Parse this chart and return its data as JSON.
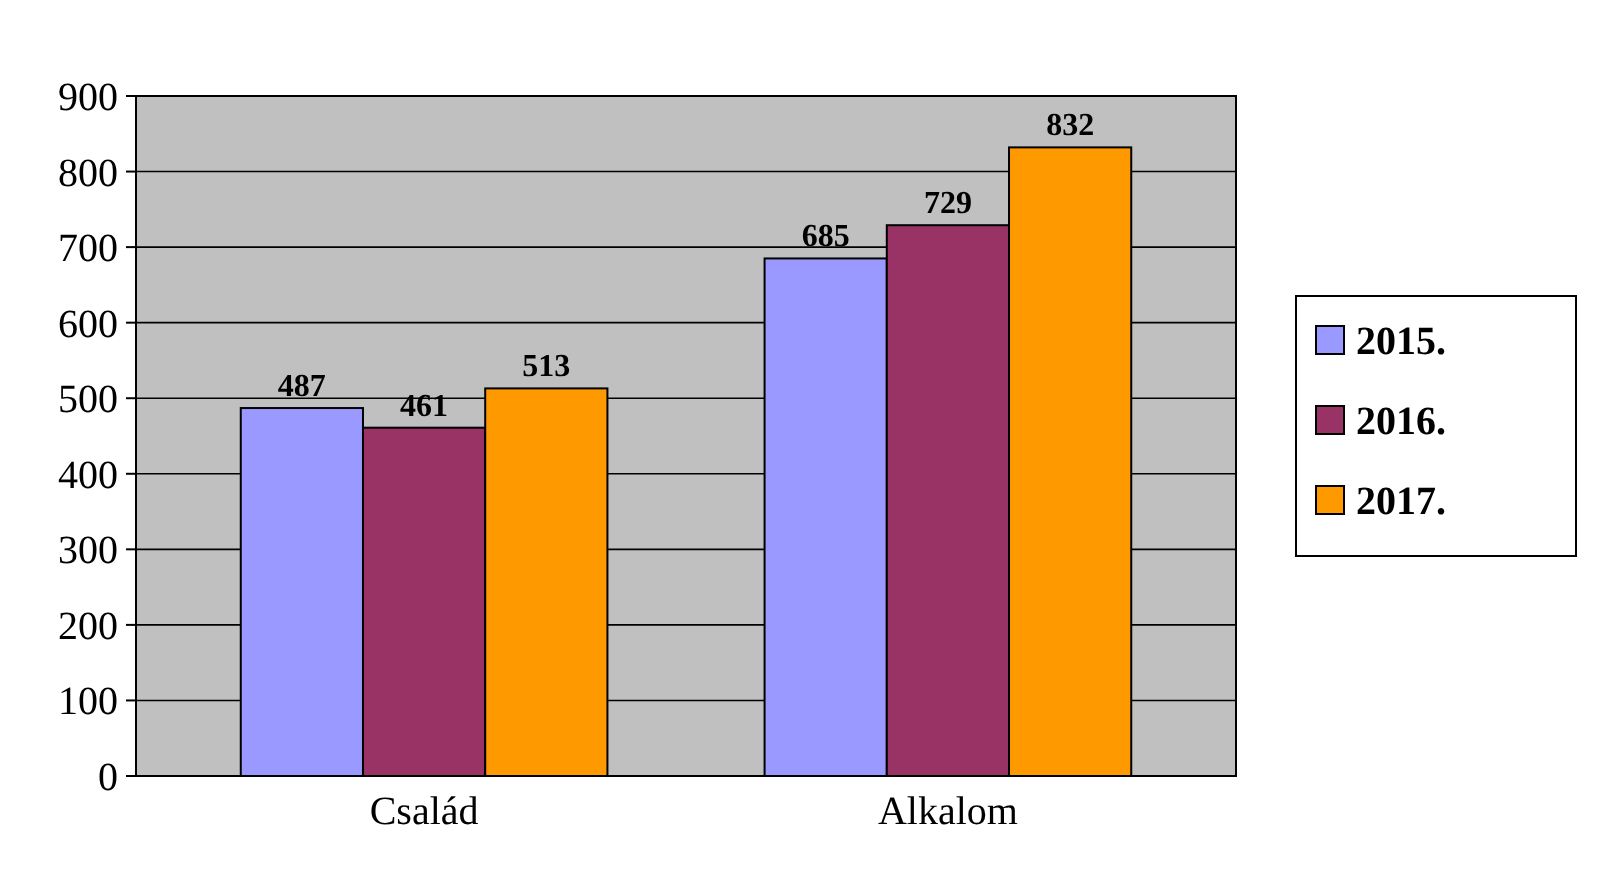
{
  "chart_data": {
    "type": "bar",
    "categories": [
      "Család",
      "Alkalom"
    ],
    "series": [
      {
        "name": "2015.",
        "color": "#9999ff",
        "values": [
          487,
          685
        ]
      },
      {
        "name": "2016.",
        "color": "#993366",
        "values": [
          461,
          729
        ]
      },
      {
        "name": "2017.",
        "color": "#ff9900",
        "values": [
          513,
          832
        ]
      }
    ],
    "ylim": [
      0,
      900
    ],
    "yticks": [
      0,
      100,
      200,
      300,
      400,
      500,
      600,
      700,
      800,
      900
    ],
    "grid": "y",
    "legend": "right",
    "data_labels": true
  }
}
